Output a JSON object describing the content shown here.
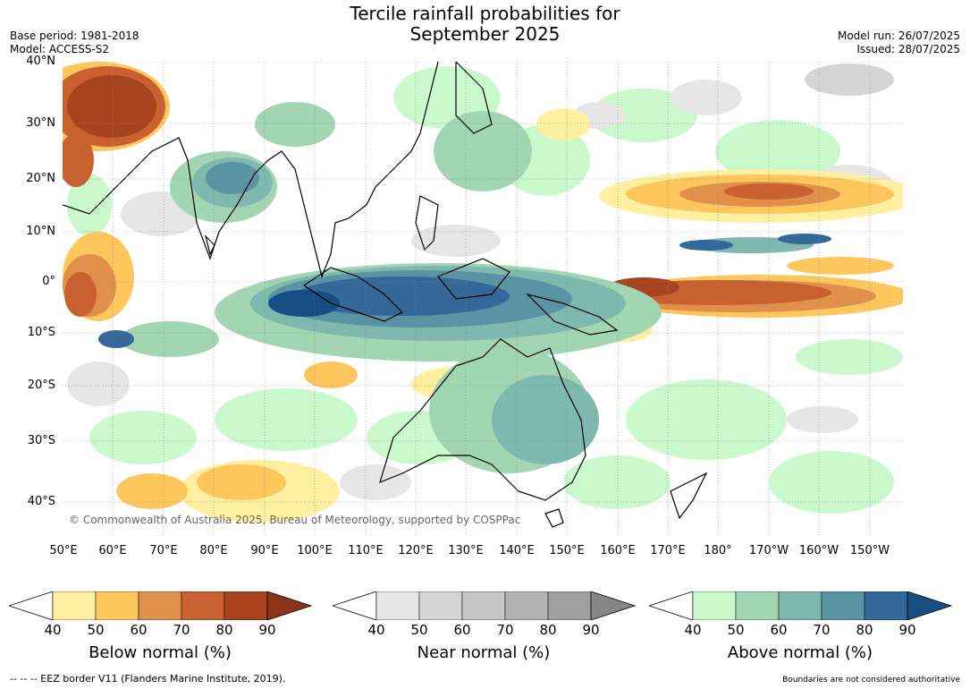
{
  "title_line1": "Tercile rainfall probabilities for",
  "title_line2": "September 2025",
  "meta_left": [
    "Base period: 1981-2018",
    "Model: ACCESS-S2"
  ],
  "meta_right": [
    "Model run: 26/07/2025",
    "Issued: 28/07/2025"
  ],
  "lat_labels": [
    "40°N",
    "30°N",
    "20°N",
    "10°N",
    "0°",
    "10°S",
    "20°S",
    "30°S",
    "40°S"
  ],
  "lon_labels": [
    "50°E",
    "60°E",
    "70°E",
    "80°E",
    "90°E",
    "100°E",
    "110°E",
    "120°E",
    "130°E",
    "140°E",
    "150°E",
    "160°E",
    "170°E",
    "180°",
    "170°W",
    "160°W",
    "150°W"
  ],
  "copyright": "© Commonwealth of Australia 2025, Bureau of Meteorology, supported by COSPPac",
  "colorbars": [
    {
      "label": "Below normal (%)",
      "ticks": [
        "40",
        "50",
        "60",
        "70",
        "80",
        "90"
      ],
      "colors": [
        "#fef0a0",
        "#fdc75e",
        "#e0904a",
        "#c96030",
        "#a8431f",
        "#8a3518"
      ]
    },
    {
      "label": "Near normal (%)",
      "ticks": [
        "40",
        "50",
        "60",
        "70",
        "80",
        "90"
      ],
      "colors": [
        "#e6e6e6",
        "#d5d5d5",
        "#c6c6c6",
        "#b3b3b3",
        "#9f9f9f",
        "#868686"
      ]
    },
    {
      "label": "Above normal (%)",
      "ticks": [
        "40",
        "50",
        "60",
        "70",
        "80",
        "90"
      ],
      "colors": [
        "#c9f9cc",
        "#a2d6b2",
        "#7fb8ae",
        "#5a93a3",
        "#336898",
        "#164d82"
      ]
    }
  ],
  "eez_note": "--  --  -- EEZ border V11 (Flanders Marine Institute, 2019).",
  "disclaimer": "Boundaries are not considered authoritative"
}
